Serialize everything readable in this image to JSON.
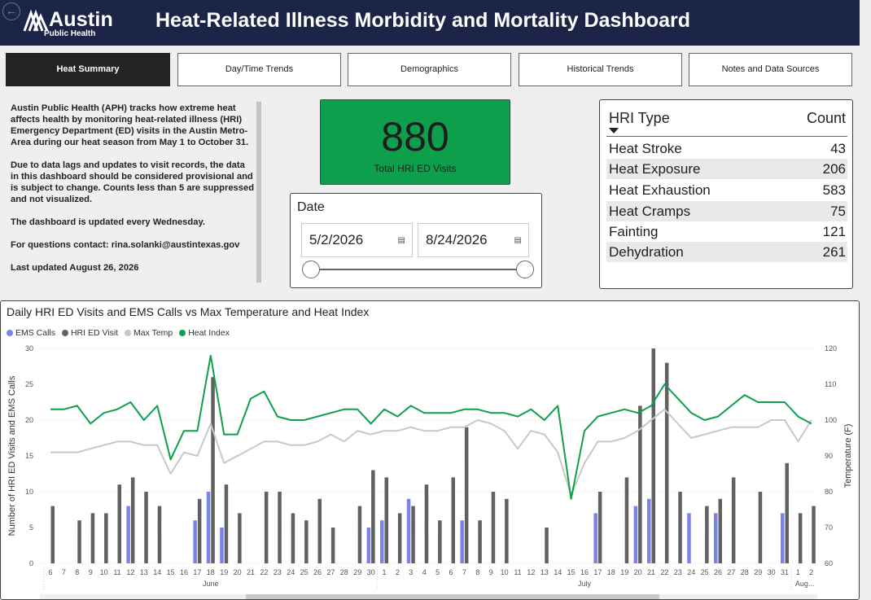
{
  "header": {
    "logo_word": "Austin",
    "logo_sub": "Public Health",
    "title": "Heat-Related Illness Morbidity and Mortality Dashboard"
  },
  "tabs": [
    {
      "label": "Heat Summary",
      "active": true
    },
    {
      "label": "Day/Time Trends",
      "active": false
    },
    {
      "label": "Demographics",
      "active": false
    },
    {
      "label": "Historical Trends",
      "active": false
    },
    {
      "label": "Notes and Data Sources",
      "active": false
    }
  ],
  "info": {
    "p1": "Austin Public Health (APH) tracks how extreme heat affects health by monitoring heat-related illness (HRI) Emergency Department (ED) visits in the Austin Metro-Area during our heat season from May 1 to October 31.",
    "p2": "Due to data lags and updates to visit records, the data in this dashboard should be considered provisional and is subject to change. Counts less than 5 are suppressed and not visualized.",
    "p3": "The dashboard is updated every Wednesday.",
    "p4": "For questions contact: rina.solanki@austintexas.gov",
    "p5": "Last updated August 26, 2026"
  },
  "kpi": {
    "value": "880",
    "label": "Total HRI ED Visits",
    "color": "#0e9f4c"
  },
  "date_filter": {
    "title": "Date",
    "start": "5/2/2026",
    "end": "8/24/2026"
  },
  "hri_table": {
    "header_type": "HRI Type",
    "header_count": "Count",
    "rows": [
      {
        "type": "Heat Stroke",
        "count": "43"
      },
      {
        "type": "Heat Exposure",
        "count": "206"
      },
      {
        "type": "Heat Exhaustion",
        "count": "583"
      },
      {
        "type": "Heat Cramps",
        "count": "75"
      },
      {
        "type": "Fainting",
        "count": "121"
      },
      {
        "type": "Dehydration",
        "count": "261"
      }
    ]
  },
  "chart_data": {
    "type": "bar",
    "title": "Daily HRI ED Visits and EMS Calls vs Max Temperature and Heat Index",
    "ylabel": "Number of HRI ED Visits and EMS Calls",
    "y2label": "Temperature (F)",
    "ylim": [
      0,
      30
    ],
    "y2lim": [
      60,
      120
    ],
    "yticks": [
      0,
      5,
      10,
      15,
      20,
      25,
      30
    ],
    "y2ticks": [
      60,
      70,
      80,
      90,
      100,
      110,
      120
    ],
    "legend_placement": "top-left",
    "colors": {
      "EMS Calls": "#7b83eb",
      "HRI ED Visit": "#616161",
      "Max Temp": "#c8c8c8",
      "Heat Index": "#0e9f4c"
    },
    "categories": [
      "6",
      "7",
      "8",
      "9",
      "10",
      "11",
      "12",
      "13",
      "14",
      "15",
      "16",
      "17",
      "18",
      "19",
      "20",
      "21",
      "22",
      "23",
      "24",
      "25",
      "26",
      "27",
      "28",
      "29",
      "30",
      "1",
      "2",
      "3",
      "4",
      "5",
      "6",
      "7",
      "8",
      "9",
      "10",
      "11",
      "12",
      "13",
      "14",
      "15",
      "16",
      "17",
      "18",
      "19",
      "20",
      "21",
      "22",
      "23",
      "24",
      "25",
      "26",
      "27",
      "28",
      "29",
      "30",
      "31",
      "1",
      "2"
    ],
    "months": [
      {
        "label": "June",
        "start": 0,
        "end": 24
      },
      {
        "label": "July",
        "start": 25,
        "end": 55
      },
      {
        "label": "Aug...",
        "start": 56,
        "end": 57
      }
    ],
    "series": [
      {
        "name": "EMS Calls",
        "axis": "left",
        "kind": "bar",
        "values": [
          null,
          null,
          null,
          null,
          null,
          null,
          8,
          null,
          null,
          null,
          null,
          6,
          10,
          5,
          null,
          null,
          null,
          null,
          null,
          null,
          null,
          null,
          null,
          null,
          5,
          6,
          null,
          9,
          null,
          null,
          null,
          6,
          null,
          null,
          null,
          null,
          null,
          null,
          null,
          null,
          null,
          7,
          null,
          null,
          8,
          9,
          null,
          null,
          7,
          null,
          7,
          null,
          null,
          null,
          null,
          7,
          null,
          null
        ]
      },
      {
        "name": "HRI ED Visit",
        "axis": "left",
        "kind": "bar",
        "values": [
          8,
          null,
          6,
          7,
          7,
          11,
          12,
          10,
          8,
          null,
          null,
          9,
          26,
          11,
          7,
          null,
          10,
          10,
          7,
          6,
          9,
          5,
          null,
          8,
          13,
          12,
          7,
          8,
          11,
          6,
          12,
          19,
          6,
          10,
          9,
          null,
          null,
          5,
          null,
          null,
          null,
          10,
          null,
          12,
          22,
          30,
          28,
          10,
          null,
          8,
          9,
          12,
          null,
          10,
          null,
          14,
          7,
          8
        ]
      },
      {
        "name": "Max Temp",
        "axis": "right",
        "kind": "line",
        "values": [
          91,
          91,
          91,
          92,
          93,
          94,
          94,
          93,
          93,
          85,
          91,
          90,
          99,
          88,
          90,
          92,
          94,
          94,
          93,
          93,
          94,
          96,
          94,
          97,
          96,
          97,
          97,
          98,
          97,
          97,
          98,
          98,
          100,
          99,
          97,
          92,
          97,
          96,
          91,
          79,
          88,
          94,
          94,
          95,
          97,
          100,
          103,
          99,
          95,
          96,
          97,
          98,
          98,
          98,
          100,
          100,
          94,
          100
        ]
      },
      {
        "name": "Heat Index",
        "axis": "right",
        "kind": "line",
        "values": [
          103,
          103,
          104,
          99,
          102,
          103,
          105,
          100,
          104,
          89,
          97,
          97,
          118,
          96,
          96,
          106,
          108,
          101,
          100,
          100,
          101,
          102,
          103,
          103,
          99,
          103,
          101,
          104,
          102,
          102,
          102,
          103,
          103,
          102,
          102,
          101,
          103,
          100,
          104,
          78,
          97,
          101,
          102,
          103,
          102,
          104,
          110,
          106,
          102,
          100,
          101,
          104,
          107,
          105,
          105,
          105,
          101,
          99
        ]
      }
    ]
  },
  "icons": {
    "back": "back-arrow-icon",
    "calendar": "calendar-icon",
    "sort": "sort-down-icon",
    "logo": "austin-logo-icon"
  }
}
